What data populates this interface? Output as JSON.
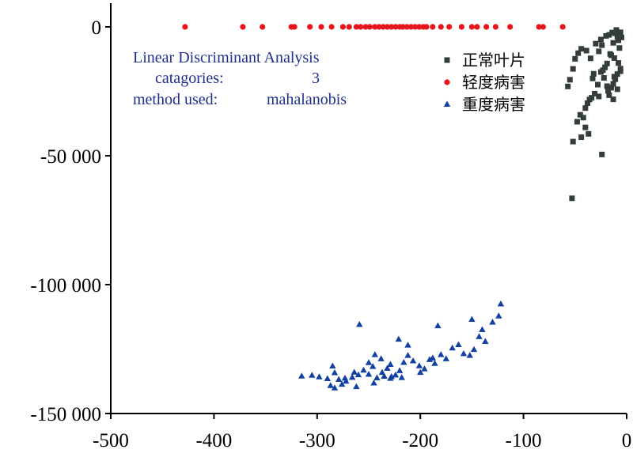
{
  "chart_data": {
    "type": "scatter",
    "xlim": [
      -500,
      0
    ],
    "ylim": [
      -150000,
      0
    ],
    "x_ticks": [
      -500,
      -400,
      -300,
      -200,
      -100,
      0
    ],
    "x_tick_labels": [
      "-500",
      "-400",
      "-300",
      "-200",
      "-100",
      "0"
    ],
    "y_ticks": [
      0,
      -50000,
      -100000,
      -150000
    ],
    "y_tick_labels": [
      "0",
      "-50 000",
      "-100 000",
      "-150 000"
    ],
    "grid": false,
    "legend_position": "top-right",
    "annotation": {
      "line1": "Linear Discriminant Analysis",
      "line2_label": "catagories:",
      "line2_value": "3",
      "line3_label": "method used:",
      "line3_value": "mahalanobis"
    },
    "series": [
      {
        "name": "正常叶片",
        "marker": "square",
        "color": "#333d3a",
        "points": [
          [
            -11,
            -2500
          ],
          [
            -10,
            -1200
          ],
          [
            -9,
            -3800
          ],
          [
            -14,
            -2200
          ],
          [
            -8,
            -5200
          ],
          [
            -13,
            -6200
          ],
          [
            -17,
            -3100
          ],
          [
            -20,
            -3500
          ],
          [
            -6,
            -2100
          ],
          [
            -5,
            -4100
          ],
          [
            -7,
            -8200
          ],
          [
            -16,
            -10500
          ],
          [
            -12,
            -12100
          ],
          [
            -19,
            -14200
          ],
          [
            -21,
            -15700
          ],
          [
            -23,
            -16800
          ],
          [
            -9,
            -18300
          ],
          [
            -25,
            -17500
          ],
          [
            -11,
            -20300
          ],
          [
            -13,
            -22100
          ],
          [
            -15,
            -23600
          ],
          [
            -18,
            -24800
          ],
          [
            -28,
            -22400
          ],
          [
            -31,
            -25900
          ],
          [
            -34,
            -27500
          ],
          [
            -36,
            -28200
          ],
          [
            -38,
            -29600
          ],
          [
            -40,
            -31500
          ],
          [
            -42,
            -35200
          ],
          [
            -45,
            -34100
          ],
          [
            -48,
            -36800
          ],
          [
            -44,
            -8500
          ],
          [
            -47,
            -10200
          ],
          [
            -50,
            -12400
          ],
          [
            -52,
            -16300
          ],
          [
            -55,
            -20500
          ],
          [
            -57,
            -23100
          ],
          [
            -35,
            -12200
          ],
          [
            -32,
            -18200
          ],
          [
            -27,
            -9500
          ],
          [
            -24,
            -7100
          ],
          [
            -22,
            -19800
          ],
          [
            -17,
            -26500
          ],
          [
            -13,
            -28100
          ],
          [
            -9,
            -24200
          ],
          [
            -6,
            -16200
          ],
          [
            -8,
            -14000
          ],
          [
            -15,
            -11000
          ],
          [
            -25,
            -4900
          ],
          [
            -30,
            -6500
          ],
          [
            -40,
            -39000
          ],
          [
            -37,
            -41500
          ],
          [
            -44,
            -42800
          ],
          [
            -52,
            -44500
          ],
          [
            -24,
            -49500
          ],
          [
            -53,
            -66500
          ],
          [
            -6,
            -17200
          ],
          [
            -12,
            -19300
          ],
          [
            -19,
            -23000
          ],
          [
            -27,
            -27000
          ],
          [
            -33,
            -20000
          ],
          [
            -39,
            -9200
          ]
        ]
      },
      {
        "name": "轻度病害",
        "marker": "circle",
        "color": "#e8141b",
        "points": [
          [
            -428,
            0
          ],
          [
            -372,
            0
          ],
          [
            -353,
            0
          ],
          [
            -325,
            0
          ],
          [
            -322,
            0
          ],
          [
            -307,
            0
          ],
          [
            -296,
            0
          ],
          [
            -286,
            0
          ],
          [
            -275,
            0
          ],
          [
            -269,
            0
          ],
          [
            -262,
            0
          ],
          [
            -258,
            0
          ],
          [
            -253,
            0
          ],
          [
            -249,
            0
          ],
          [
            -244,
            0
          ],
          [
            -240,
            0
          ],
          [
            -236,
            0
          ],
          [
            -232,
            0
          ],
          [
            -228,
            0
          ],
          [
            -224,
            0
          ],
          [
            -220,
            0
          ],
          [
            -217,
            0
          ],
          [
            -213,
            0
          ],
          [
            -209,
            0
          ],
          [
            -205,
            0
          ],
          [
            -201,
            0
          ],
          [
            -197,
            0
          ],
          [
            -194,
            0
          ],
          [
            -188,
            0
          ],
          [
            -180,
            0
          ],
          [
            -172,
            0
          ],
          [
            -160,
            0
          ],
          [
            -150,
            0
          ],
          [
            -145,
            0
          ],
          [
            -136,
            0
          ],
          [
            -127,
            0
          ],
          [
            -113,
            0
          ],
          [
            -85,
            0
          ],
          [
            -81,
            0
          ],
          [
            -62,
            0
          ]
        ]
      },
      {
        "name": "重度病害",
        "marker": "triangle",
        "color": "#1240a3",
        "points": [
          [
            -315,
            -135500
          ],
          [
            -305,
            -135200
          ],
          [
            -298,
            -135800
          ],
          [
            -290,
            -136500
          ],
          [
            -283,
            -134200
          ],
          [
            -279,
            -136800
          ],
          [
            -272,
            -137500
          ],
          [
            -266,
            -136000
          ],
          [
            -260,
            -135000
          ],
          [
            -255,
            -133200
          ],
          [
            -250,
            -134800
          ],
          [
            -246,
            -131800
          ],
          [
            -242,
            -136200
          ],
          [
            -237,
            -134100
          ],
          [
            -232,
            -132500
          ],
          [
            -229,
            -131000
          ],
          [
            -224,
            -135100
          ],
          [
            -220,
            -133400
          ],
          [
            -216,
            -130200
          ],
          [
            -212,
            -127500
          ],
          [
            -207,
            -129600
          ],
          [
            -201,
            -131500
          ],
          [
            -196,
            -132700
          ],
          [
            -191,
            -129100
          ],
          [
            -186,
            -130600
          ],
          [
            -180,
            -127200
          ],
          [
            -175,
            -128800
          ],
          [
            -169,
            -124600
          ],
          [
            -163,
            -123300
          ],
          [
            -158,
            -126800
          ],
          [
            -152,
            -127500
          ],
          [
            -148,
            -125200
          ],
          [
            -143,
            -120200
          ],
          [
            -137,
            -122100
          ],
          [
            -130,
            -114600
          ],
          [
            -124,
            -112200
          ],
          [
            -122,
            -107500
          ],
          [
            -150,
            -113500
          ],
          [
            -140,
            -117500
          ],
          [
            -183,
            -116000
          ],
          [
            -238,
            -128800
          ],
          [
            -244,
            -127200
          ],
          [
            -259,
            -115500
          ],
          [
            -221,
            -121200
          ],
          [
            -212,
            -123500
          ],
          [
            -285,
            -131600
          ],
          [
            -276,
            -138700
          ],
          [
            -287,
            -139200
          ],
          [
            -283,
            -140100
          ],
          [
            -262,
            -139600
          ],
          [
            -245,
            -138200
          ],
          [
            -235,
            -135600
          ],
          [
            -229,
            -136400
          ],
          [
            -218,
            -136100
          ],
          [
            -228,
            -135700
          ],
          [
            -250,
            -130300
          ],
          [
            -264,
            -134000
          ],
          [
            -273,
            -136300
          ],
          [
            -200,
            -134100
          ],
          [
            -188,
            -128500
          ]
        ]
      }
    ]
  }
}
